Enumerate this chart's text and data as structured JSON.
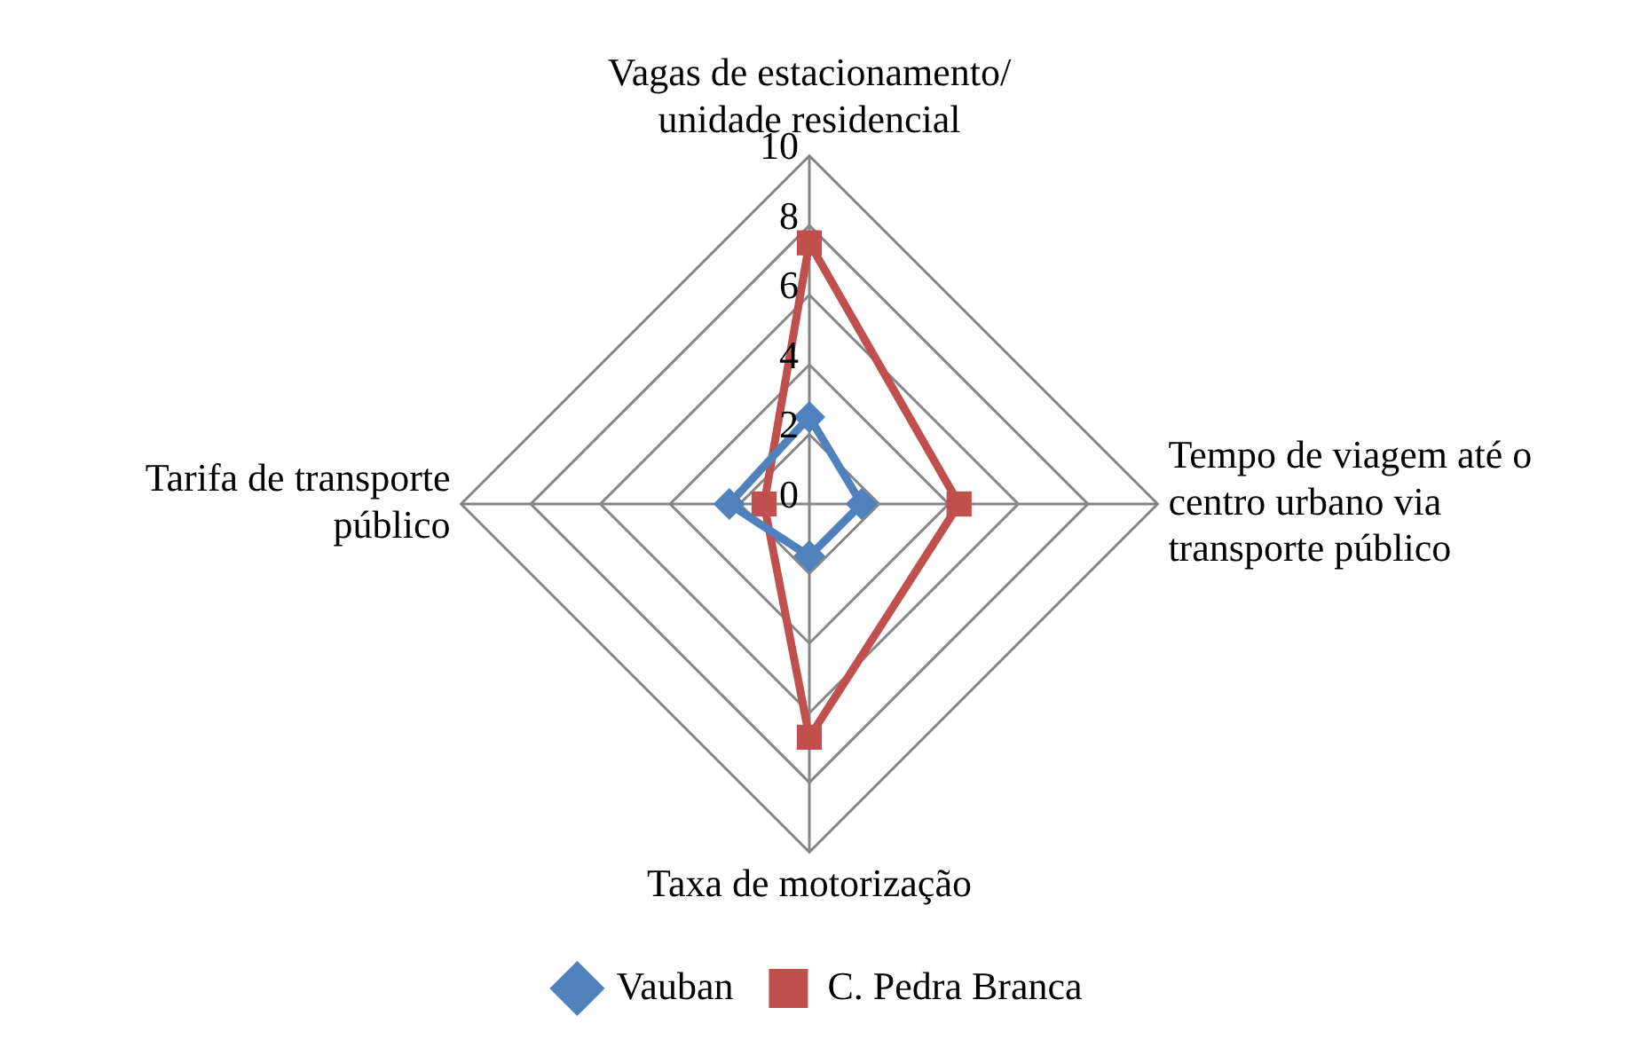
{
  "chart_data": {
    "type": "radar",
    "categories": [
      "Vagas de estacionamento/ unidade residencial",
      "Tempo de viagem até o centro urbano via transporte público",
      "Taxa de motorização",
      "Tarifa de transporte público"
    ],
    "series": [
      {
        "name": "Vauban",
        "color": "#4f81bd",
        "marker": "diamond",
        "values": [
          2.5,
          1.5,
          1.5,
          2.3
        ]
      },
      {
        "name": "C. Pedra Branca",
        "color": "#c0504d",
        "marker": "square",
        "values": [
          7.5,
          4.3,
          6.7,
          1.3
        ]
      }
    ],
    "ylim": [
      0,
      10
    ],
    "yticks": [
      0,
      2,
      4,
      6,
      8,
      10
    ],
    "grid": true,
    "legend": "bottom"
  }
}
